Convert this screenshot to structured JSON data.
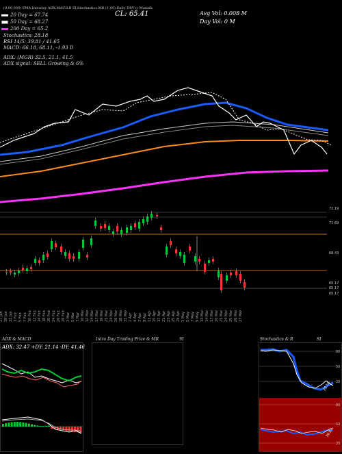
{
  "header": {
    "top_text": "(0,00,000) EMA Intraday ADX,MACD,B    SI,Stochastics,MR    (1,60) Daily DBV    () Munafa",
    "cl": "CL: 65.41",
    "avg_vol": "Avg Vol: 0.008   M",
    "day_vol": "Day Vol: 0   M"
  },
  "legend": [
    {
      "label": "20  Day = 67.74",
      "color": "#ffffff"
    },
    {
      "label": "50  Day = 68.27",
      "color": "#ffffff"
    },
    {
      "label": "200  Day = 65.2",
      "color": "#ff33ff"
    }
  ],
  "indicators": {
    "stochastics": "Stochastics: 28.18",
    "rsi": "RSI 14/5: 39.81 / 41.65",
    "macd": "MACD: 66.18, 68.11, -1.93 D",
    "adx": "ADX:                     (MGR) 32.5, 21.1, 41.5",
    "adx_signal": "ADX  signal: SELL Growing & 6%"
  },
  "price_labels": [
    "72.19",
    "71.69",
    "68.43",
    "65.17",
    "65.17",
    "65.17"
  ],
  "dates": [
    "27 Jan",
    "29 Jan",
    "31 Jan",
    "3 Feb",
    "5 Feb",
    "7 Feb",
    "10 Feb",
    "12 Feb",
    "14 Feb",
    "18 Feb",
    "20 Feb",
    "24 Feb",
    "26 Feb",
    "28 Feb",
    "3 Mar",
    "5 Mar",
    "7 Mar",
    "10 Mar",
    "12 Mar",
    "14 Mar",
    "17 Mar",
    "19 Mar",
    "21 Mar",
    "24 Mar",
    "26 Mar",
    "28 Mar",
    "31 Mar",
    "2 Apr",
    "4 Apr",
    "7 Apr",
    "9 Apr",
    "11 Apr",
    "15 Apr",
    "17 Apr",
    "21 Apr",
    "23 Apr",
    "25 Apr",
    "29 Apr",
    "1 May",
    "5 May",
    "7 May",
    "9 May",
    "13 Mar",
    "14 Mar",
    "17 Mar",
    "20 Mar",
    "21 Mar",
    "24 Mar",
    "25 Mar",
    "26 Mar",
    "27 Mar"
  ],
  "panels": {
    "adx_title": "ADX  & MACD",
    "adx_values": "ADX: 32.47  +DY: 21.14  -DY: 41.46",
    "intraday_title": "Intra  Day Trading Price  & MR",
    "intraday_si": "SI",
    "stoch_title": "Stochastics & R",
    "stoch_si": "SI",
    "stoch_ticks": [
      "80",
      "50",
      "20"
    ],
    "rsi_ticks": [
      "80",
      "50",
      "20"
    ],
    "stoch_value": "28.18",
    "rsi_value": "39.81"
  },
  "colors": {
    "ema_blue": "#1a5cff",
    "ema_orange": "#ff8c1a",
    "ema_magenta": "#ff33ff",
    "candle_up": "#00cc33",
    "candle_down": "#ff3333",
    "rsi_bg": "#990000"
  }
}
